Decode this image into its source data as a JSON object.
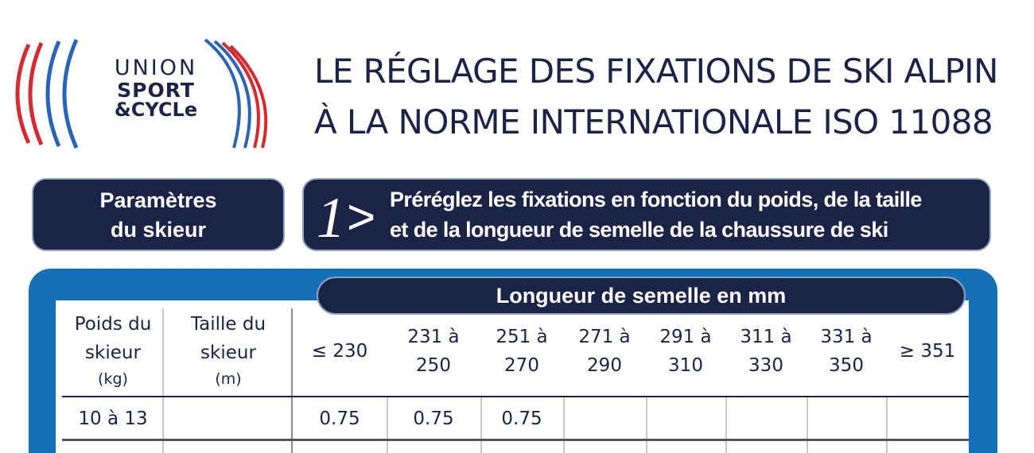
{
  "logo": {
    "line1": "UNION",
    "line2": "SPORT",
    "line3": "&CYCLe",
    "colors": {
      "red": "#d42a32",
      "blue": "#2a64b5",
      "navy": "#1b2347"
    }
  },
  "title": {
    "line1": "LE RÉGLAGE DES FIXATIONS DE SKI ALPIN",
    "line2": "À LA NORME INTERNATIONALE ISO 11088"
  },
  "params_box": {
    "line1": "Paramètres",
    "line2": "du skieur"
  },
  "step": {
    "number": "1",
    "arrow": ">",
    "line1": "Préréglez les fixations en fonction  du poids, de la taille",
    "line2": "et de la longueur de semelle de la chaussure  de ski"
  },
  "table": {
    "semelle_header": "Longueur de semelle en mm",
    "poids_header": [
      "Poids du",
      "skieur",
      "(kg)"
    ],
    "taille_header": [
      "Taille du",
      "skieur",
      "(m)"
    ],
    "length_columns": [
      [
        "≤ 230"
      ],
      [
        "231 à",
        "250"
      ],
      [
        "251 à",
        "270"
      ],
      [
        "271 à",
        "290"
      ],
      [
        "291 à",
        "310"
      ],
      [
        "311 à",
        "330"
      ],
      [
        "331 à",
        "350"
      ],
      [
        "≥ 351"
      ]
    ],
    "rows": [
      {
        "poids": "10 à 13",
        "taille": "",
        "values": [
          "0.75",
          "0.75",
          "0.75",
          "",
          "",
          "",
          "",
          ""
        ]
      }
    ]
  },
  "colors": {
    "navy": "#1b2347",
    "panel_blue": "#1670b8",
    "pill_border": "#8fa3c4"
  }
}
